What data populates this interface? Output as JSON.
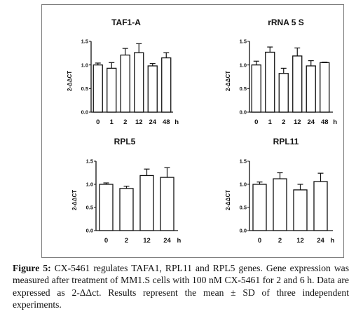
{
  "chart_data": [
    {
      "type": "bar",
      "title": "TAF1-A",
      "ylabel": "2-ΔΔCT",
      "ylim": [
        0,
        1.5
      ],
      "yticks": [
        "0.0",
        "0.5",
        "1.0",
        "1.5"
      ],
      "categories": [
        "0",
        "1",
        "2",
        "12",
        "24",
        "48"
      ],
      "unit": "h",
      "values": [
        1.0,
        0.93,
        1.21,
        1.26,
        0.98,
        1.15
      ],
      "errors": [
        0.04,
        0.12,
        0.14,
        0.19,
        0.05,
        0.11
      ]
    },
    {
      "type": "bar",
      "title": "rRNA 5 S",
      "ylabel": "2-ΔΔCT",
      "ylim": [
        0,
        1.5
      ],
      "yticks": [
        "0.0",
        "0.5",
        "1.0",
        "1.5"
      ],
      "categories": [
        "0",
        "1",
        "2",
        "12",
        "24",
        "48"
      ],
      "unit": "h",
      "values": [
        1.0,
        1.27,
        0.82,
        1.19,
        0.98,
        1.05
      ],
      "errors": [
        0.08,
        0.11,
        0.11,
        0.17,
        0.11,
        0.01
      ]
    },
    {
      "type": "bar",
      "title": "RPL5",
      "ylabel": "2-ΔΔCT",
      "ylim": [
        0,
        1.5
      ],
      "yticks": [
        "0.0",
        "0.5",
        "1.0",
        "1.5"
      ],
      "categories": [
        "0",
        "2",
        "12",
        "24"
      ],
      "unit": "h",
      "values": [
        1.0,
        0.91,
        1.19,
        1.15
      ],
      "errors": [
        0.03,
        0.05,
        0.14,
        0.21
      ]
    },
    {
      "type": "bar",
      "title": "RPL11",
      "ylabel": "2-ΔΔCT",
      "ylim": [
        0,
        1.5
      ],
      "yticks": [
        "0.0",
        "0.5",
        "1.0",
        "1.5"
      ],
      "categories": [
        "0",
        "2",
        "12",
        "24"
      ],
      "unit": "h",
      "values": [
        1.0,
        1.12,
        0.88,
        1.06
      ],
      "errors": [
        0.05,
        0.13,
        0.12,
        0.18
      ]
    }
  ],
  "caption": {
    "label": "Figure 5:",
    "text": " CX-5461 regulates TAFA1, RPL11 and RPL5 genes. Gene expression was measured after treatment of MM1.S cells with 100 nM CX-5461 for 2 and 6 h. Data are expressed as 2-ΔΔct. Results represent the mean ± SD of three independent experiments."
  }
}
